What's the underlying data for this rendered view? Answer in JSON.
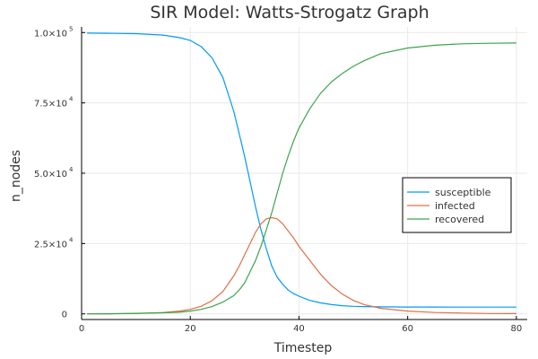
{
  "chart_data": {
    "type": "line",
    "title": "SIR Model: Watts-Strogatz Graph",
    "xlabel": "Timestep",
    "ylabel": "n_nodes",
    "xlim": [
      0,
      82
    ],
    "ylim": [
      -2000,
      102000
    ],
    "grid": true,
    "legend_position": "right",
    "x_ticks": [
      {
        "value": 0,
        "label": "0"
      },
      {
        "value": 20,
        "label": "20"
      },
      {
        "value": 40,
        "label": "40"
      },
      {
        "value": 60,
        "label": "60"
      },
      {
        "value": 80,
        "label": "80"
      }
    ],
    "y_ticks": [
      {
        "value": 0,
        "label": "0",
        "exp": ""
      },
      {
        "value": 25000,
        "label": "2.5×10",
        "exp": "4"
      },
      {
        "value": 50000,
        "label": "5.0×10",
        "exp": "4"
      },
      {
        "value": 75000,
        "label": "7.5×10",
        "exp": "4"
      },
      {
        "value": 100000,
        "label": "1.0×10",
        "exp": "5"
      }
    ],
    "x": [
      1,
      5,
      10,
      15,
      18,
      20,
      22,
      24,
      26,
      28,
      29,
      30,
      31,
      32,
      33,
      34,
      35,
      36,
      37,
      38,
      39,
      40,
      42,
      44,
      46,
      48,
      50,
      52,
      55,
      60,
      65,
      70,
      75,
      80
    ],
    "series": [
      {
        "name": "susceptible",
        "color": "#009af9",
        "values": [
          99800,
          99750,
          99600,
          99100,
          98200,
          97200,
          95000,
          91000,
          84000,
          72000,
          64000,
          56000,
          47000,
          38000,
          30000,
          23000,
          17000,
          13000,
          10500,
          8500,
          7200,
          6300,
          4800,
          3900,
          3300,
          2900,
          2700,
          2600,
          2500,
          2450,
          2420,
          2400,
          2400,
          2400
        ]
      },
      {
        "name": "infected",
        "color": "#e26f46",
        "values": [
          0,
          30,
          150,
          500,
          1000,
          1600,
          2700,
          4700,
          8000,
          13500,
          17000,
          21000,
          25000,
          29000,
          32000,
          33800,
          34200,
          33800,
          32000,
          29500,
          27000,
          24000,
          19000,
          14000,
          10000,
          7000,
          4800,
          3300,
          2000,
          1000,
          500,
          300,
          150,
          100
        ]
      },
      {
        "name": "recovered",
        "color": "#3da44d",
        "values": [
          0,
          50,
          200,
          400,
          600,
          1000,
          1600,
          2600,
          4200,
          6500,
          8500,
          11000,
          15000,
          19000,
          24000,
          30000,
          36000,
          43000,
          50000,
          56000,
          61500,
          66000,
          73000,
          78500,
          82500,
          85500,
          88000,
          90000,
          92500,
          94500,
          95500,
          96000,
          96200,
          96300
        ]
      }
    ]
  }
}
